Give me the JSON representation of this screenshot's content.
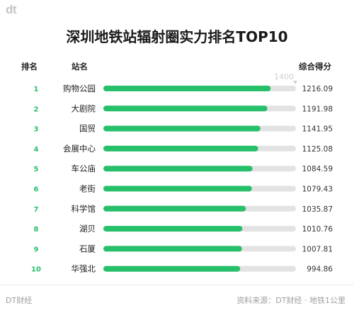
{
  "brand": {
    "logo_text": "dt",
    "footer_left": "DT财经",
    "footer_right": "资料来源：DT财经 · 地铁1公里"
  },
  "title": "深圳地铁站辐射圈实力排名TOP10",
  "headers": {
    "rank": "排名",
    "station": "站名",
    "score": "综合得分"
  },
  "colors": {
    "bar": "#27c06a",
    "track": "#e3e3e3",
    "rank": "#27c06a",
    "max_marker": "#cfcfcf"
  },
  "chart_data": {
    "type": "bar",
    "orientation": "horizontal",
    "title": "深圳地铁站辐射圈实力排名TOP10",
    "xlim": [
      0,
      1400
    ],
    "max_label": "1400",
    "categories": [
      "购物公园",
      "大剧院",
      "国贸",
      "会展中心",
      "车公庙",
      "老街",
      "科学馆",
      "湖贝",
      "石厦",
      "华强北"
    ],
    "ranks": [
      "1",
      "2",
      "3",
      "4",
      "5",
      "6",
      "7",
      "8",
      "9",
      "10"
    ],
    "values": [
      1216.09,
      1191.98,
      1141.95,
      1125.08,
      1084.59,
      1079.43,
      1035.87,
      1010.76,
      1007.81,
      994.86
    ],
    "value_labels": [
      "1216.09",
      "1191.98",
      "1141.95",
      "1125.08",
      "1084.59",
      "1079.43",
      "1035.87",
      "1010.76",
      "1007.81",
      "994.86"
    ]
  }
}
